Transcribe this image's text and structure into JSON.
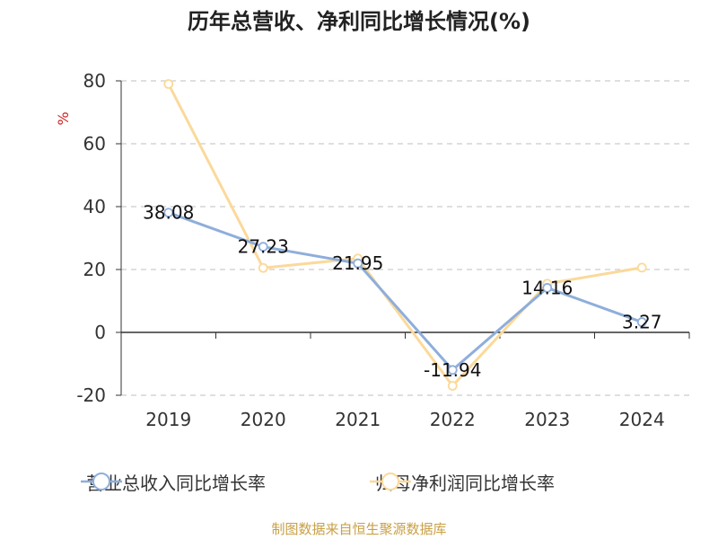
{
  "title": "历年总营收、净利同比增长情况(%)",
  "source": "制图数据来自恒生聚源数据库",
  "colors": {
    "revenue": "#8eaedb",
    "profit": "#fbd99a",
    "ylabel": "#cc2222",
    "grid": "#cccccc",
    "axis": "#333333"
  },
  "chart_data": {
    "type": "line",
    "title": "历年总营收、净利同比增长情况(%)",
    "ylabel": "%",
    "xlabel": "",
    "ylim": [
      -20,
      80
    ],
    "yticks": [
      -20,
      0,
      20,
      40,
      60,
      80
    ],
    "grid": "horizontal-dashed",
    "legend_position": "bottom",
    "categories": [
      "2019",
      "2020",
      "2021",
      "2022",
      "2023",
      "2024"
    ],
    "series": [
      {
        "name": "营业总收入同比增长率",
        "values": [
          38.08,
          27.23,
          21.95,
          -11.94,
          14.16,
          3.27
        ],
        "labels": [
          "38.08",
          "27.23",
          "21.95",
          "-11.94",
          "14.16",
          "3.27"
        ]
      },
      {
        "name": "归母净利润同比增长率",
        "values": [
          79.0,
          20.5,
          23.5,
          -17.0,
          15.5,
          20.6
        ]
      }
    ]
  }
}
